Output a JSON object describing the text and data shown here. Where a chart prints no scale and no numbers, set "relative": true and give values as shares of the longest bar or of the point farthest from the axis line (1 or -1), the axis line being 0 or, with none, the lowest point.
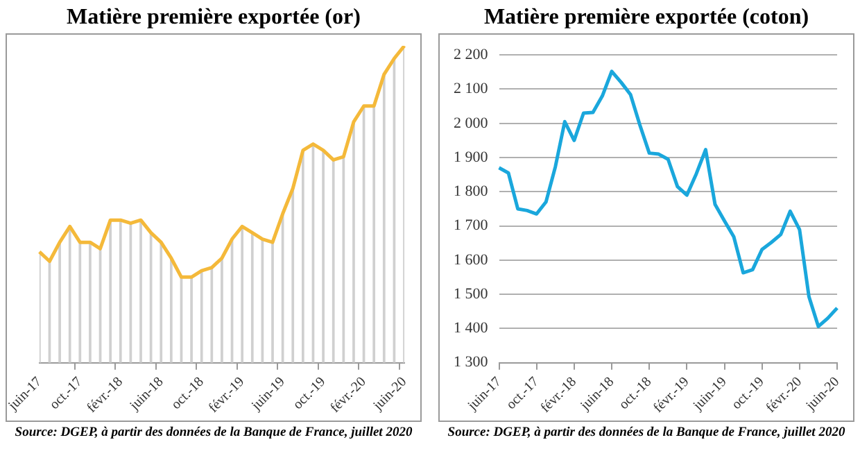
{
  "chart_data": [
    {
      "type": "line",
      "title": "Matière première exportée (or)",
      "relative": true,
      "grid": false,
      "legend": false,
      "categories": [
        "juin-17",
        null,
        null,
        null,
        "oct.-17",
        null,
        null,
        null,
        "févr.-18",
        null,
        null,
        null,
        "juin-18",
        null,
        null,
        null,
        "oct.-18",
        null,
        null,
        null,
        "févr.-19",
        null,
        null,
        null,
        "juin-19",
        null,
        null,
        null,
        "oct.-19",
        null,
        null,
        null,
        "févr.-20",
        null,
        null,
        null,
        "juin-20"
      ],
      "series": [
        {
          "color": "#f4b93a",
          "values": [
            0.35,
            0.32,
            0.38,
            0.43,
            0.38,
            0.38,
            0.36,
            0.45,
            0.45,
            0.44,
            0.45,
            0.41,
            0.38,
            0.33,
            0.27,
            0.27,
            0.29,
            0.3,
            0.33,
            0.39,
            0.43,
            0.41,
            0.39,
            0.38,
            0.47,
            0.55,
            0.67,
            0.69,
            0.67,
            0.64,
            0.65,
            0.76,
            0.81,
            0.81,
            0.91,
            0.96,
            1
          ]
        },
        {
          "type": "bar",
          "color": "#d0d0d0",
          "values": [
            0.35,
            0.32,
            0.38,
            0.43,
            0.38,
            0.38,
            0.36,
            0.45,
            0.45,
            0.44,
            0.45,
            0.41,
            0.38,
            0.33,
            0.27,
            0.27,
            0.29,
            0.3,
            0.33,
            0.39,
            0.43,
            0.41,
            0.39,
            0.38,
            0.47,
            0.55,
            0.67,
            0.69,
            0.67,
            0.64,
            0.65,
            0.76,
            0.81,
            0.81,
            0.91,
            0.96,
            1
          ]
        }
      ],
      "annotations": [
        "Source: DGEP, à partir des données de la Banque de France, juillet 2020"
      ]
    },
    {
      "type": "line",
      "title": "Matière première exportée (coton)",
      "grid": "y",
      "legend": false,
      "categories": [
        "juin-17",
        null,
        null,
        null,
        "oct.-17",
        null,
        null,
        null,
        "févr.-18",
        null,
        null,
        null,
        "juin-18",
        null,
        null,
        null,
        "oct.-18",
        null,
        null,
        null,
        "févr.-19",
        null,
        null,
        null,
        "juin-19",
        null,
        null,
        null,
        "oct.-19",
        null,
        null,
        null,
        "févr.-20",
        null,
        null,
        null,
        "juin-20"
      ],
      "series": [
        {
          "color": "#1aa7dc",
          "values": [
            1870,
            1855,
            1750,
            1745,
            1735,
            1770,
            1873,
            2005,
            1950,
            2030,
            2032,
            2080,
            2152,
            2120,
            2084,
            1995,
            1913,
            1910,
            1895,
            1815,
            1790,
            1852,
            1923,
            1763,
            1715,
            1668,
            1563,
            1572,
            1631,
            1652,
            1675,
            1743,
            1689,
            1493,
            1406,
            1430,
            1460
          ]
        }
      ],
      "ylim": [
        1300,
        2200
      ],
      "yticks": [
        {
          "value": 1300,
          "label": "1 300"
        },
        {
          "value": 1400,
          "label": "1 400"
        },
        {
          "value": 1500,
          "label": "1 500"
        },
        {
          "value": 1600,
          "label": "1 600"
        },
        {
          "value": 1700,
          "label": "1 700"
        },
        {
          "value": 1800,
          "label": "1 800"
        },
        {
          "value": 1900,
          "label": "1 900"
        },
        {
          "value": 2000,
          "label": "2 000"
        },
        {
          "value": 2100,
          "label": "2 100"
        },
        {
          "value": 2200,
          "label": "2 200"
        }
      ],
      "annotations": [
        "Source: DGEP, à partir des données de la Banque de France, juillet 2020"
      ]
    }
  ]
}
